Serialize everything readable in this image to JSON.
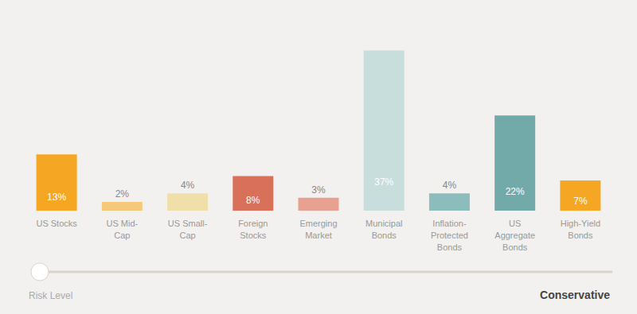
{
  "chart_data": {
    "type": "bar",
    "categories": [
      "US Stocks",
      "US Mid-\nCap",
      "US Small-\nCap",
      "Foreign\nStocks",
      "Emerging\nMarket",
      "Municipal\nBonds",
      "Inflation-\nProtected\nBonds",
      "US\nAggregate\nBonds",
      "High-Yield\nBonds"
    ],
    "values": [
      13,
      2,
      4,
      8,
      3,
      37,
      4,
      22,
      7
    ],
    "value_labels": [
      "13%",
      "2%",
      "4%",
      "8%",
      "3%",
      "37%",
      "4%",
      "22%",
      "7%"
    ],
    "colors": [
      "#F5A623",
      "#F5C87A",
      "#F0DFA8",
      "#D9705A",
      "#E8A090",
      "#C8DEDD",
      "#8BBDBD",
      "#72AAAA",
      "#F5A623"
    ],
    "ylim": [
      0,
      45
    ],
    "grid": false,
    "tick_labels": "x",
    "data_labels": true,
    "annotations": [
      "Risk Level",
      "Conservative"
    ]
  }
}
